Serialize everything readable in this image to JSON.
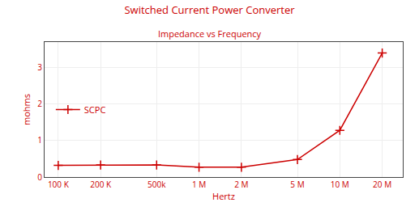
{
  "chart_data": {
    "type": "line",
    "title": "Switched Current Power Converter",
    "subtitle": "Impedance vs Frequency",
    "x_label": "Hertz",
    "y_label": "mohms",
    "x": [
      100000,
      200000,
      500000,
      1000000,
      2000000,
      5000000,
      10000000,
      20000000
    ],
    "series": [
      {
        "name": "SCPC",
        "color": "#cc0000",
        "marker": "plus",
        "line_style": "solid",
        "values": [
          0.32,
          0.33,
          0.33,
          0.27,
          0.27,
          0.48,
          1.28,
          3.4
        ]
      }
    ],
    "log": "x",
    "xlim": [
      80000,
      28000000
    ],
    "xticks": [
      {
        "value": 100000,
        "label": "100 K"
      },
      {
        "value": 200000,
        "label": "200 K"
      },
      {
        "value": 500000,
        "label": "500k"
      },
      {
        "value": 1000000,
        "label": "1 M"
      },
      {
        "value": 2000000,
        "label": "2 M"
      },
      {
        "value": 5000000,
        "label": "5 M"
      },
      {
        "value": 10000000,
        "label": "10 M"
      },
      {
        "value": 20000000,
        "label": "20 M"
      }
    ],
    "ylim": [
      0,
      3.7
    ],
    "yticks": [
      0,
      1,
      2,
      3
    ],
    "grid": true,
    "legend": "left"
  }
}
